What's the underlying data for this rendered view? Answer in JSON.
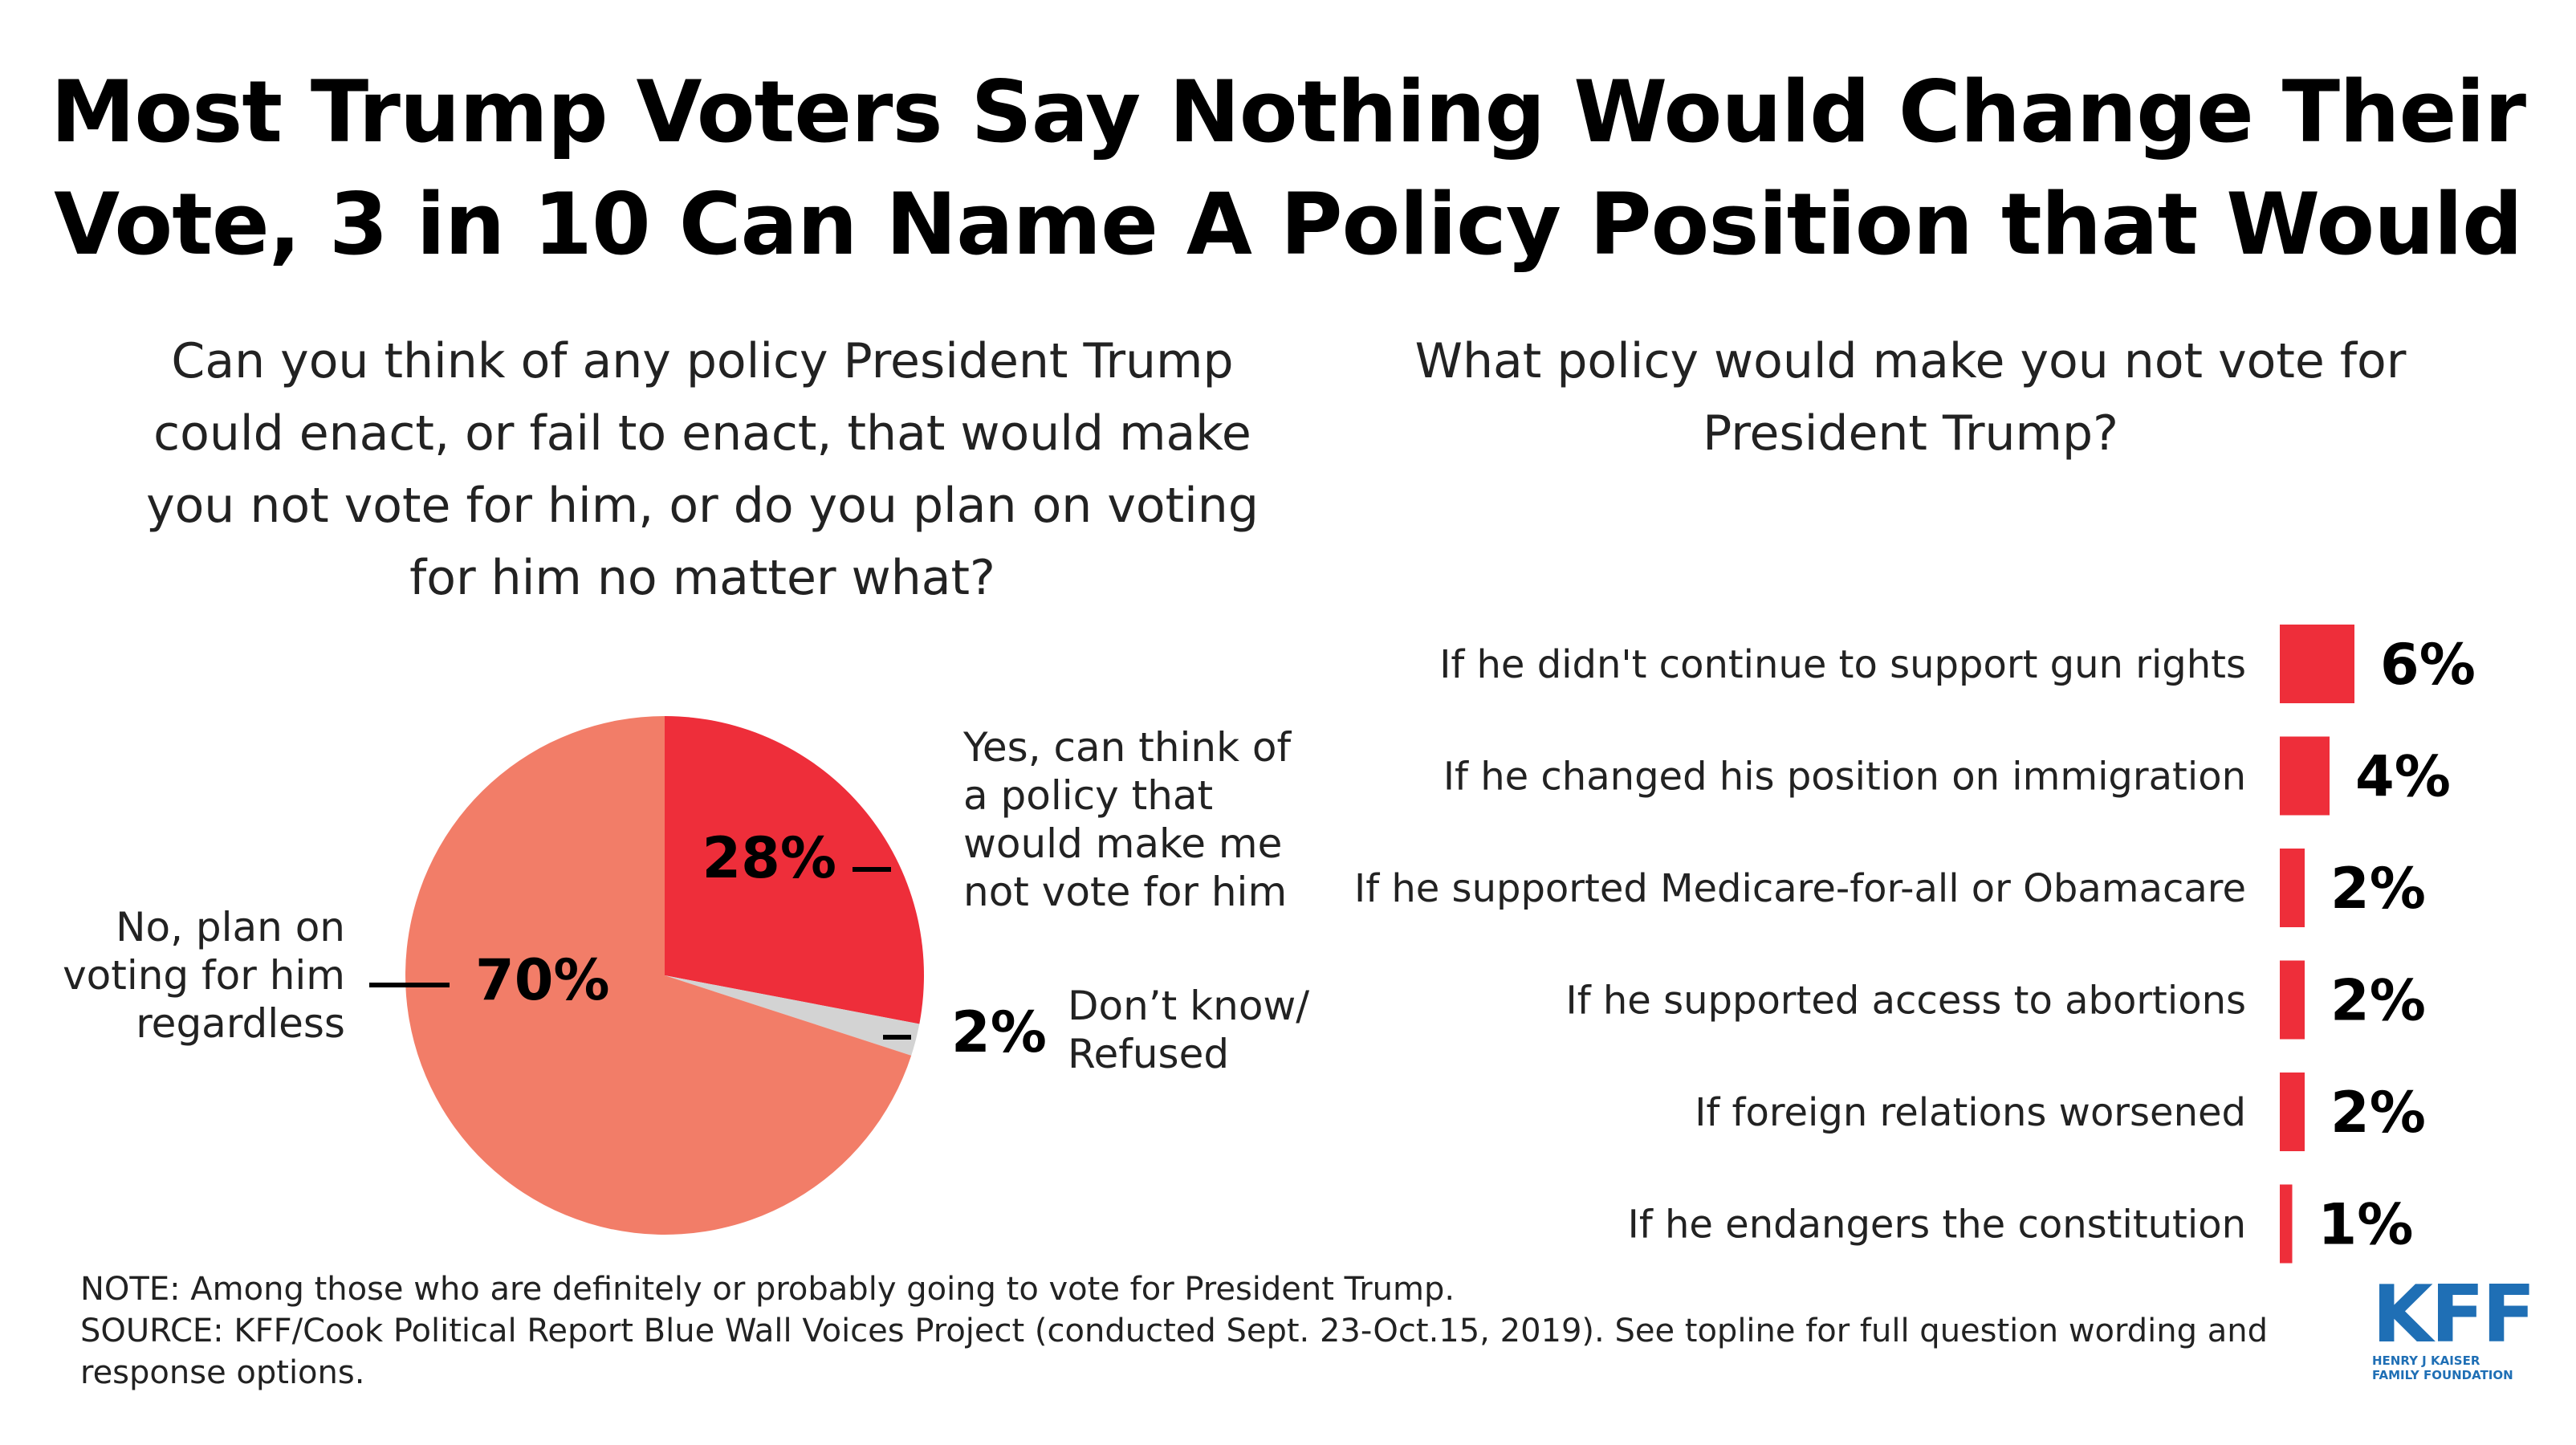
{
  "title_lines": [
    "Most Trump Voters Say Nothing Would Change Their",
    "Vote, 3 in 10 Can Name A Policy Position that Would"
  ],
  "left_question": [
    "Can you think of any policy President Trump",
    "could enact, or fail to enact, that would make",
    "you not vote for him, or do you plan on voting",
    "for him no matter what?"
  ],
  "right_question": [
    "What policy would make you not vote for",
    "President Trump?"
  ],
  "colors": {
    "red": "#ee2e3a",
    "salmon": "#f27d68",
    "gray": "#d3d3d3"
  },
  "chart_data": [
    {
      "type": "pie",
      "slices": [
        {
          "value": 28,
          "value_label": "28%",
          "label_lines": [
            "Yes, can think of",
            "a policy that",
            "would make me",
            "not vote for him"
          ],
          "color": "#ee2e3a"
        },
        {
          "value": 2,
          "value_label": "2%",
          "label_lines": [
            "Don’t know/",
            "Refused"
          ],
          "color": "#d3d3d3"
        },
        {
          "value": 70,
          "value_label": "70%",
          "label_lines": [
            "No, plan on",
            "voting for him",
            "regardless"
          ],
          "color": "#f27d68"
        }
      ]
    },
    {
      "type": "bar",
      "categories": [
        "If he didn't continue to support gun rights",
        "If he changed his position on immigration",
        "If he supported Medicare-for-all or Obamacare",
        "If he supported access to abortions",
        "If foreign relations worsened",
        "If he endangers the constitution"
      ],
      "values": [
        6,
        4,
        2,
        2,
        2,
        1
      ],
      "value_labels": [
        "6%",
        "4%",
        "2%",
        "2%",
        "2%",
        "1%"
      ],
      "color": "#ee2e3a"
    }
  ],
  "note": "NOTE: Among those who are definitely or probably going to vote for President Trump.",
  "source_lines": [
    "SOURCE: KFF/Cook Political Report Blue Wall Voices Project (conducted Sept. 23-Oct.15, 2019). See topline for full question wording and",
    "response options."
  ],
  "logo": {
    "text": "KFF",
    "sub_lines": [
      "HENRY J KAISER",
      "FAMILY FOUNDATION"
    ]
  }
}
